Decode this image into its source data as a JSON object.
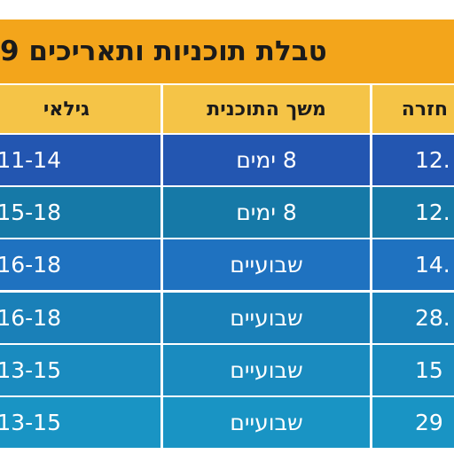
{
  "title": "טבלת תוכניות ותאריכים 9",
  "table": {
    "headers": [
      "חזרה",
      "משך התוכנית",
      "גילאי"
    ],
    "rows": [
      [
        "12.",
        "8 ימים",
        "11-14"
      ],
      [
        "12.",
        "8 ימים",
        "15-18"
      ],
      [
        "14.",
        "שבועיים",
        "16-18"
      ],
      [
        "28.",
        "שבועיים",
        "16-18"
      ],
      [
        "15",
        "שבועיים",
        "13-15"
      ],
      [
        "29",
        "שבועיים",
        "13-15"
      ]
    ]
  }
}
